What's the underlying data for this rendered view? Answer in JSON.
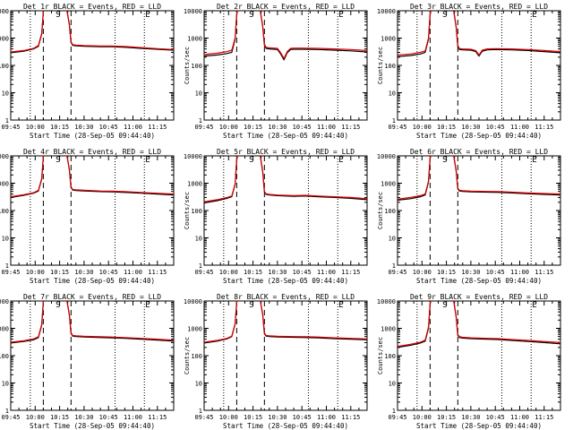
{
  "colors": {
    "background": "#ffffff",
    "axes": "#000000",
    "events": "#000000",
    "lld": "#e00000"
  },
  "panels": [
    {
      "title": "Det 1r BLACK = Events, RED = LLD"
    },
    {
      "title": "Det 2r BLACK = Events, RED = LLD"
    },
    {
      "title": "Det 3r BLACK = Events, RED = LLD"
    },
    {
      "title": "Det 4r BLACK = Events, RED = LLD"
    },
    {
      "title": "Det 5r BLACK = Events, RED = LLD"
    },
    {
      "title": "Det 6r BLACK = Events, RED = LLD"
    },
    {
      "title": "Det 7r BLACK = Events, RED = LLD"
    },
    {
      "title": "Det 8r BLACK = Events, RED = LLD"
    },
    {
      "title": "Det 9r BLACK = Events, RED = LLD"
    }
  ],
  "chart_data": {
    "type": "line",
    "layout": "3x3 grid of small multiples",
    "xlabel": "Start Time (28-Sep-05 09:44:40)",
    "ylabel": "Counts/sec",
    "x_ticks": [
      "09:45",
      "10:00",
      "10:15",
      "10:30",
      "10:45",
      "11:00",
      "11:15"
    ],
    "x_tick_minutes": [
      0,
      15,
      30,
      45,
      60,
      75,
      90
    ],
    "xlim_minutes": [
      0,
      100
    ],
    "y_scale": "log",
    "ylim": [
      1,
      10000
    ],
    "y_ticks": [
      "1",
      "10",
      "100",
      "1000",
      "10000"
    ],
    "y_tick_values": [
      1,
      10,
      100,
      1000,
      10000
    ],
    "interval_markers": {
      "dotted_minutes": [
        12,
        64,
        82
      ],
      "dashed_minutes": [
        20,
        37
      ],
      "labels": [
        {
          "text": "S",
          "minute": 27
        },
        {
          "text": "E",
          "minute": 82
        }
      ]
    },
    "series_legend": [
      {
        "name": "Events",
        "color": "#000000"
      },
      {
        "name": "LLD",
        "color": "#e00000"
      }
    ],
    "series": [
      {
        "panel": "Det 1r",
        "name": "Events",
        "x": [
          0,
          8,
          14,
          17,
          19,
          20,
          21,
          23,
          24,
          32,
          34,
          36,
          37,
          38,
          40,
          45,
          55,
          62,
          70,
          80,
          90,
          100
        ],
        "y": [
          290,
          330,
          400,
          500,
          1400,
          9000,
          15000,
          15000,
          15000,
          15000,
          15000,
          3000,
          700,
          540,
          520,
          500,
          480,
          480,
          460,
          420,
          390,
          360
        ]
      },
      {
        "panel": "Det 1r",
        "name": "LLD",
        "x": [
          0,
          8,
          14,
          17,
          19,
          20,
          21,
          23,
          24,
          32,
          34,
          36,
          37,
          38,
          40,
          45,
          55,
          62,
          70,
          80,
          90,
          100
        ],
        "y": [
          310,
          350,
          420,
          540,
          1500,
          9500,
          15000,
          15000,
          15000,
          15000,
          15000,
          3200,
          740,
          570,
          550,
          530,
          510,
          510,
          490,
          450,
          410,
          380
        ]
      },
      {
        "panel": "Det 2r",
        "name": "Events",
        "x": [
          0,
          8,
          14,
          17,
          19,
          20,
          21,
          23,
          24,
          32,
          34,
          36,
          37,
          38,
          40,
          45,
          47,
          49,
          51,
          53,
          55,
          60,
          70,
          80,
          90,
          100
        ],
        "y": [
          220,
          240,
          270,
          300,
          900,
          7000,
          15000,
          15000,
          15000,
          15000,
          15000,
          2500,
          550,
          420,
          400,
          380,
          260,
          160,
          290,
          380,
          390,
          390,
          380,
          360,
          340,
          310
        ]
      },
      {
        "panel": "Det 2r",
        "name": "LLD",
        "x": [
          0,
          8,
          14,
          17,
          19,
          20,
          21,
          23,
          24,
          32,
          34,
          36,
          37,
          38,
          40,
          45,
          47,
          49,
          51,
          53,
          55,
          60,
          70,
          80,
          90,
          100
        ],
        "y": [
          250,
          280,
          320,
          360,
          1000,
          7500,
          15000,
          15000,
          15000,
          15000,
          15000,
          2700,
          600,
          460,
          440,
          420,
          290,
          180,
          320,
          420,
          430,
          430,
          420,
          400,
          380,
          350
        ]
      },
      {
        "panel": "Det 3r",
        "name": "Events",
        "x": [
          0,
          8,
          14,
          17,
          19,
          20,
          21,
          23,
          24,
          32,
          34,
          36,
          37,
          38,
          40,
          45,
          48,
          50,
          52,
          55,
          60,
          70,
          80,
          90,
          100
        ],
        "y": [
          210,
          230,
          260,
          300,
          900,
          7000,
          15000,
          15000,
          15000,
          15000,
          15000,
          2500,
          500,
          380,
          370,
          360,
          320,
          220,
          330,
          370,
          380,
          370,
          350,
          320,
          290
        ]
      },
      {
        "panel": "Det 3r",
        "name": "LLD",
        "x": [
          0,
          8,
          14,
          17,
          19,
          20,
          21,
          23,
          24,
          32,
          34,
          36,
          37,
          38,
          40,
          45,
          48,
          50,
          52,
          55,
          60,
          70,
          80,
          90,
          100
        ],
        "y": [
          240,
          260,
          300,
          340,
          1000,
          7500,
          15000,
          15000,
          15000,
          15000,
          15000,
          2700,
          540,
          410,
          400,
          390,
          350,
          240,
          360,
          400,
          410,
          400,
          380,
          350,
          320
        ]
      },
      {
        "panel": "Det 4r",
        "name": "Events",
        "x": [
          0,
          8,
          14,
          17,
          19,
          20,
          21,
          23,
          24,
          32,
          34,
          36,
          37,
          38,
          40,
          45,
          55,
          62,
          70,
          80,
          90,
          100
        ],
        "y": [
          300,
          360,
          430,
          520,
          1400,
          9000,
          15000,
          15000,
          15000,
          15000,
          15000,
          3000,
          700,
          560,
          540,
          520,
          490,
          480,
          460,
          430,
          400,
          370
        ]
      },
      {
        "panel": "Det 4r",
        "name": "LLD",
        "x": [
          0,
          8,
          14,
          17,
          19,
          20,
          21,
          23,
          24,
          32,
          34,
          36,
          37,
          38,
          40,
          45,
          55,
          62,
          70,
          80,
          90,
          100
        ],
        "y": [
          320,
          380,
          450,
          550,
          1500,
          9500,
          15000,
          15000,
          15000,
          15000,
          15000,
          3200,
          740,
          590,
          570,
          550,
          520,
          510,
          490,
          460,
          430,
          400
        ]
      },
      {
        "panel": "Det 5r",
        "name": "Events",
        "x": [
          0,
          8,
          14,
          17,
          19,
          20,
          21,
          23,
          24,
          32,
          34,
          36,
          37,
          38,
          40,
          45,
          55,
          62,
          70,
          80,
          90,
          100
        ],
        "y": [
          190,
          230,
          280,
          320,
          900,
          7000,
          15000,
          15000,
          15000,
          15000,
          15000,
          2500,
          480,
          390,
          370,
          350,
          330,
          340,
          320,
          300,
          280,
          250
        ]
      },
      {
        "panel": "Det 5r",
        "name": "LLD",
        "x": [
          0,
          8,
          14,
          17,
          19,
          20,
          21,
          23,
          24,
          32,
          34,
          36,
          37,
          38,
          40,
          45,
          55,
          62,
          70,
          80,
          90,
          100
        ],
        "y": [
          210,
          250,
          300,
          340,
          950,
          7500,
          15000,
          15000,
          15000,
          15000,
          15000,
          2700,
          500,
          410,
          390,
          370,
          350,
          360,
          340,
          320,
          300,
          270
        ]
      },
      {
        "panel": "Det 6r",
        "name": "Events",
        "x": [
          0,
          8,
          14,
          17,
          19,
          20,
          21,
          23,
          24,
          32,
          34,
          36,
          37,
          38,
          40,
          45,
          55,
          62,
          70,
          80,
          90,
          100
        ],
        "y": [
          240,
          270,
          320,
          370,
          1100,
          8000,
          15000,
          15000,
          15000,
          15000,
          15000,
          2800,
          620,
          520,
          500,
          480,
          470,
          460,
          440,
          410,
          390,
          370
        ]
      },
      {
        "panel": "Det 6r",
        "name": "LLD",
        "x": [
          0,
          8,
          14,
          17,
          19,
          20,
          21,
          23,
          24,
          32,
          34,
          36,
          37,
          38,
          40,
          45,
          55,
          62,
          70,
          80,
          90,
          100
        ],
        "y": [
          260,
          300,
          350,
          400,
          1200,
          8500,
          15000,
          15000,
          15000,
          15000,
          15000,
          3000,
          660,
          550,
          530,
          510,
          500,
          490,
          470,
          440,
          420,
          400
        ]
      },
      {
        "panel": "Det 7r",
        "name": "Events",
        "x": [
          0,
          8,
          14,
          17,
          19,
          20,
          21,
          23,
          24,
          32,
          34,
          36,
          37,
          38,
          40,
          45,
          55,
          62,
          70,
          80,
          90,
          100
        ],
        "y": [
          290,
          330,
          380,
          460,
          1300,
          9000,
          15000,
          15000,
          15000,
          15000,
          15000,
          3000,
          650,
          520,
          500,
          480,
          460,
          450,
          430,
          400,
          370,
          340
        ]
      },
      {
        "panel": "Det 7r",
        "name": "LLD",
        "x": [
          0,
          8,
          14,
          17,
          19,
          20,
          21,
          23,
          24,
          32,
          34,
          36,
          37,
          38,
          40,
          45,
          55,
          62,
          70,
          80,
          90,
          100
        ],
        "y": [
          310,
          350,
          410,
          490,
          1400,
          9500,
          15000,
          15000,
          15000,
          15000,
          15000,
          3200,
          690,
          550,
          530,
          510,
          490,
          480,
          460,
          430,
          400,
          370
        ]
      },
      {
        "panel": "Det 8r",
        "name": "Events",
        "x": [
          0,
          8,
          14,
          17,
          19,
          20,
          21,
          23,
          24,
          32,
          34,
          36,
          37,
          38,
          40,
          45,
          55,
          62,
          70,
          80,
          90,
          100
        ],
        "y": [
          290,
          340,
          410,
          500,
          1400,
          9000,
          15000,
          15000,
          15000,
          15000,
          15000,
          3000,
          640,
          520,
          500,
          480,
          470,
          460,
          450,
          420,
          400,
          380
        ]
      },
      {
        "panel": "Det 8r",
        "name": "LLD",
        "x": [
          0,
          8,
          14,
          17,
          19,
          20,
          21,
          23,
          24,
          32,
          34,
          36,
          37,
          38,
          40,
          45,
          55,
          62,
          70,
          80,
          90,
          100
        ],
        "y": [
          310,
          360,
          430,
          520,
          1500,
          9500,
          15000,
          15000,
          15000,
          15000,
          15000,
          3200,
          680,
          550,
          530,
          510,
          500,
          490,
          480,
          450,
          430,
          410
        ]
      },
      {
        "panel": "Det 9r",
        "name": "Events",
        "x": [
          0,
          8,
          14,
          17,
          19,
          20,
          21,
          23,
          24,
          32,
          34,
          36,
          37,
          38,
          40,
          45,
          55,
          62,
          70,
          80,
          90,
          100
        ],
        "y": [
          200,
          240,
          290,
          340,
          1000,
          7500,
          15000,
          15000,
          15000,
          15000,
          15000,
          2600,
          560,
          460,
          440,
          420,
          400,
          390,
          360,
          330,
          300,
          270
        ]
      },
      {
        "panel": "Det 9r",
        "name": "LLD",
        "x": [
          0,
          8,
          14,
          17,
          19,
          20,
          21,
          23,
          24,
          32,
          34,
          36,
          37,
          38,
          40,
          45,
          55,
          62,
          70,
          80,
          90,
          100
        ],
        "y": [
          220,
          260,
          310,
          370,
          1100,
          8000,
          15000,
          15000,
          15000,
          15000,
          15000,
          2800,
          600,
          490,
          470,
          450,
          430,
          420,
          390,
          360,
          330,
          300
        ]
      }
    ]
  }
}
